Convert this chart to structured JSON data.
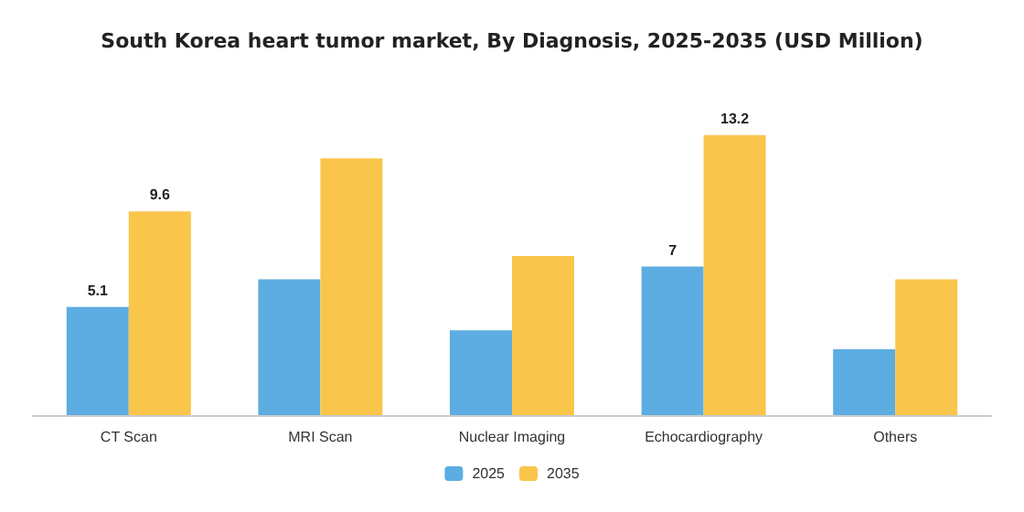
{
  "chart_data": {
    "type": "bar",
    "title": "South Korea heart tumor market, By Diagnosis, 2025-2035 (USD Million)",
    "categories": [
      "CT Scan",
      "MRI Scan",
      "Nuclear Imaging",
      "Echocardiography",
      "Others"
    ],
    "series": [
      {
        "name": "2025",
        "color": "#5dade2",
        "values": [
          5.1,
          6.4,
          4.0,
          7,
          3.1
        ],
        "value_labels": [
          "5.1",
          null,
          null,
          "7",
          null
        ]
      },
      {
        "name": "2035",
        "color": "#f9c54a",
        "values": [
          9.6,
          12.1,
          7.5,
          13.2,
          6.4
        ],
        "value_labels": [
          "9.6",
          null,
          null,
          "13.2",
          null
        ]
      }
    ],
    "legend": "bottom"
  }
}
